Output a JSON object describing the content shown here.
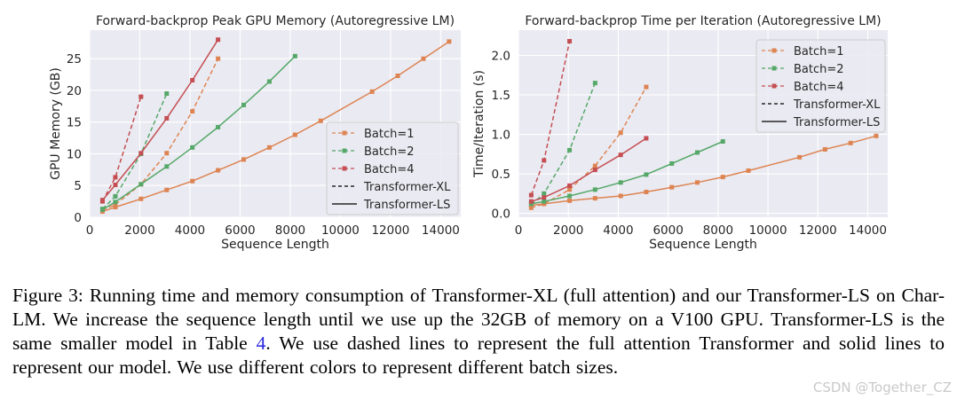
{
  "chart_data": [
    {
      "type": "line",
      "title": "Forward-backprop Peak GPU Memory (Autoregressive LM)",
      "xlabel": "Sequence Length",
      "ylabel": "GPU Memory (GB)",
      "xlim": [
        0,
        14800
      ],
      "ylim": [
        0,
        29.5
      ],
      "xticks": [
        0,
        2000,
        4000,
        6000,
        8000,
        10000,
        12000,
        14000
      ],
      "yticks": [
        0,
        5,
        10,
        15,
        20,
        25
      ],
      "grid": true,
      "legend_position": "center-right",
      "series": [
        {
          "name": "Batch=1",
          "model": "Transformer-XL",
          "style": "dashed",
          "color": "#dd8452",
          "x": [
            512,
            1024,
            2048,
            3072,
            4096,
            5120
          ],
          "y": [
            1.1,
            2.0,
            5.2,
            10.1,
            16.7,
            25.0
          ]
        },
        {
          "name": "Batch=2",
          "model": "Transformer-XL",
          "style": "dashed",
          "color": "#55a868",
          "x": [
            512,
            1024,
            2048,
            3072
          ],
          "y": [
            1.3,
            3.3,
            10.0,
            19.5
          ]
        },
        {
          "name": "Batch=4",
          "model": "Transformer-XL",
          "style": "dashed",
          "color": "#c44e52",
          "x": [
            512,
            1024,
            2048
          ],
          "y": [
            2.5,
            6.3,
            19.0
          ]
        },
        {
          "name": "Batch=1",
          "model": "Transformer-LS",
          "style": "solid",
          "color": "#dd8452",
          "x": [
            512,
            1024,
            2048,
            3072,
            4096,
            5120,
            6144,
            7168,
            8192,
            9216,
            11264,
            12288,
            13312,
            14336
          ],
          "y": [
            0.9,
            1.6,
            2.9,
            4.3,
            5.7,
            7.4,
            9.1,
            11.0,
            13.0,
            15.2,
            19.8,
            22.3,
            25.0,
            27.7
          ]
        },
        {
          "name": "Batch=2",
          "model": "Transformer-LS",
          "style": "solid",
          "color": "#55a868",
          "x": [
            512,
            1024,
            2048,
            3072,
            4096,
            5120,
            6144,
            7168,
            8192
          ],
          "y": [
            1.2,
            2.4,
            5.2,
            8.0,
            11.0,
            14.2,
            17.7,
            21.4,
            25.4
          ]
        },
        {
          "name": "Batch=4",
          "model": "Transformer-LS",
          "style": "solid",
          "color": "#c44e52",
          "x": [
            512,
            1024,
            2048,
            3072,
            4096,
            5120
          ],
          "y": [
            2.7,
            5.1,
            10.1,
            15.6,
            21.6,
            28.0
          ]
        }
      ],
      "legend": [
        {
          "label": "Batch=1",
          "kind": "marker",
          "color": "#dd8452"
        },
        {
          "label": "Batch=2",
          "kind": "marker",
          "color": "#55a868"
        },
        {
          "label": "Batch=4",
          "kind": "marker",
          "color": "#c44e52"
        },
        {
          "label": "Transformer-XL",
          "kind": "dashed",
          "color": "#000000"
        },
        {
          "label": "Transformer-LS",
          "kind": "solid",
          "color": "#000000"
        }
      ]
    },
    {
      "type": "line",
      "title": "Forward-backprop Time per Iteration (Autoregressive LM)",
      "xlabel": "Sequence Length",
      "ylabel": "Time/Iteration (s)",
      "xlim": [
        0,
        14800
      ],
      "ylim": [
        -0.05,
        2.32
      ],
      "xticks": [
        0,
        2000,
        4000,
        6000,
        8000,
        10000,
        12000,
        14000
      ],
      "yticks": [
        0.0,
        0.5,
        1.0,
        1.5,
        2.0
      ],
      "ytick_labels": [
        "0.0",
        "0.5",
        "1.0",
        "1.5",
        "2.0"
      ],
      "grid": true,
      "legend_position": "top-right",
      "series": [
        {
          "name": "Batch=1",
          "model": "Transformer-XL",
          "style": "dashed",
          "color": "#dd8452",
          "x": [
            512,
            1024,
            2048,
            3072,
            4096,
            5120
          ],
          "y": [
            0.07,
            0.12,
            0.3,
            0.6,
            1.02,
            1.6
          ]
        },
        {
          "name": "Batch=2",
          "model": "Transformer-XL",
          "style": "dashed",
          "color": "#55a868",
          "x": [
            512,
            1024,
            2048,
            3072
          ],
          "y": [
            0.11,
            0.25,
            0.8,
            1.65
          ]
        },
        {
          "name": "Batch=4",
          "model": "Transformer-XL",
          "style": "dashed",
          "color": "#c44e52",
          "x": [
            512,
            1024,
            2048
          ],
          "y": [
            0.23,
            0.67,
            2.18
          ]
        },
        {
          "name": "Batch=1",
          "model": "Transformer-LS",
          "style": "solid",
          "color": "#dd8452",
          "x": [
            512,
            1024,
            2048,
            3072,
            4096,
            5120,
            6144,
            7168,
            8192,
            9216,
            11264,
            12288,
            13312,
            14336
          ],
          "y": [
            0.1,
            0.12,
            0.16,
            0.19,
            0.22,
            0.27,
            0.33,
            0.39,
            0.46,
            0.54,
            0.71,
            0.81,
            0.89,
            0.98
          ]
        },
        {
          "name": "Batch=2",
          "model": "Transformer-LS",
          "style": "solid",
          "color": "#55a868",
          "x": [
            512,
            1024,
            2048,
            3072,
            4096,
            5120,
            6144,
            7168,
            8192
          ],
          "y": [
            0.12,
            0.15,
            0.22,
            0.3,
            0.39,
            0.49,
            0.63,
            0.77,
            0.91
          ]
        },
        {
          "name": "Batch=4",
          "model": "Transformer-LS",
          "style": "solid",
          "color": "#c44e52",
          "x": [
            512,
            1024,
            2048,
            3072,
            4096,
            5120
          ],
          "y": [
            0.15,
            0.2,
            0.35,
            0.55,
            0.74,
            0.95
          ]
        }
      ],
      "legend": [
        {
          "label": "Batch=1",
          "kind": "marker",
          "color": "#dd8452"
        },
        {
          "label": "Batch=2",
          "kind": "marker",
          "color": "#55a868"
        },
        {
          "label": "Batch=4",
          "kind": "marker",
          "color": "#c44e52"
        },
        {
          "label": "Transformer-XL",
          "kind": "dashed",
          "color": "#000000"
        },
        {
          "label": "Transformer-LS",
          "kind": "solid",
          "color": "#000000"
        }
      ]
    }
  ],
  "caption": {
    "label": "Figure 3:",
    "text_before_ref": "Running time and memory consumption of Transformer-XL (full attention) and our Transformer-LS on Char-LM. We increase the sequence length until we use up the 32GB of memory on a V100 GPU. Transformer-LS is the same smaller model in Table ",
    "ref": "4",
    "text_after_ref": ". We use dashed lines to represent the full attention Transformer and solid lines to represent our model. We use different colors to represent different batch sizes."
  },
  "watermark": "CSDN @Together_CZ"
}
